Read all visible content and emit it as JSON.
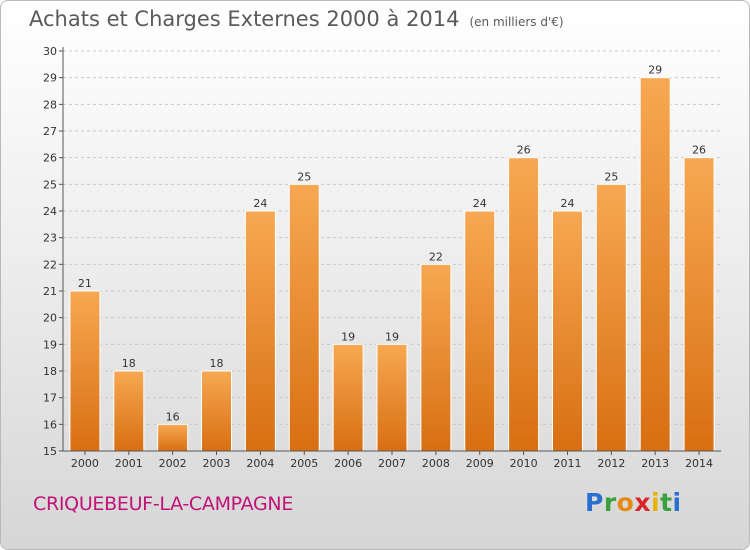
{
  "header": {
    "title": "Achats et Charges Externes 2000 à 2014",
    "subtitle": "(en milliers d'€)"
  },
  "footer": {
    "place": "CRIQUEBEUF-LA-CAMPAGNE",
    "logo_text": "Proxiti"
  },
  "colors": {
    "bar_top": "#f7a852",
    "bar_bottom": "#d86f12",
    "place": "#c2127a"
  },
  "chart_data": {
    "type": "bar",
    "title": "Achats et Charges Externes 2000 à 2014",
    "subtitle": "(en milliers d'€)",
    "categories": [
      "2000",
      "2001",
      "2002",
      "2003",
      "2004",
      "2005",
      "2006",
      "2007",
      "2008",
      "2009",
      "2010",
      "2011",
      "2012",
      "2013",
      "2014"
    ],
    "values": [
      21,
      18,
      16,
      18,
      24,
      25,
      19,
      19,
      22,
      24,
      26,
      24,
      25,
      29,
      26
    ],
    "ylim": [
      15,
      30
    ],
    "yticks": [
      15,
      16,
      17,
      18,
      19,
      20,
      21,
      22,
      23,
      24,
      25,
      26,
      27,
      28,
      29,
      30
    ],
    "grid": true,
    "data_labels": true
  }
}
